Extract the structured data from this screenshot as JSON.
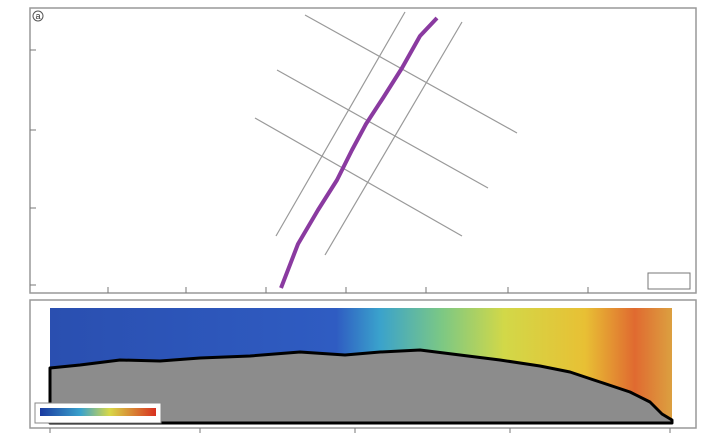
{
  "panels": {
    "top": {
      "label": "a"
    }
  }
}
